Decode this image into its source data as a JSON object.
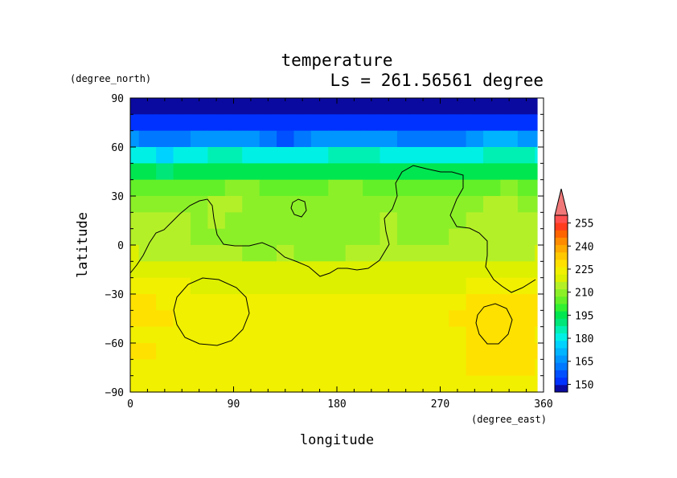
{
  "chart_data": {
    "type": "heatmap",
    "title": "temperature",
    "subtitle": "Ls = 261.56561 degree",
    "xlabel": "longitude",
    "ylabel": "latitude",
    "xunits": "(degree_east)",
    "yunits": "(degree_north)",
    "xlim": [
      0,
      360
    ],
    "ylim": [
      -90,
      90
    ],
    "xticks": [
      "0",
      "90",
      "180",
      "270",
      "360"
    ],
    "yticks": [
      "90",
      "60",
      "30",
      "0",
      "−30",
      "−60",
      "−90"
    ],
    "longitudes": [
      0,
      15,
      30,
      45,
      60,
      75,
      90,
      105,
      120,
      135,
      150,
      165,
      180,
      195,
      210,
      225,
      240,
      255,
      270,
      285,
      300,
      315,
      330,
      345,
      360
    ],
    "latitudes": [
      85,
      75,
      65,
      55,
      45,
      35,
      25,
      15,
      5,
      -5,
      -15,
      -25,
      -35,
      -45,
      -55,
      -65,
      -75,
      -85
    ],
    "values": [
      [
        147,
        147,
        147,
        147,
        147,
        147,
        147,
        147,
        147,
        147,
        147,
        147,
        147,
        147,
        147,
        147,
        147,
        147,
        147,
        147,
        147,
        147,
        147,
        147,
        147
      ],
      [
        153,
        153,
        153,
        153,
        153,
        153,
        153,
        153,
        150,
        150,
        153,
        153,
        153,
        153,
        153,
        153,
        153,
        153,
        153,
        153,
        153,
        153,
        153,
        153,
        153
      ],
      [
        165,
        163,
        160,
        162,
        166,
        167,
        168,
        165,
        160,
        158,
        160,
        166,
        168,
        168,
        169,
        165,
        162,
        160,
        160,
        163,
        166,
        170,
        171,
        168,
        165
      ],
      [
        184,
        181,
        178,
        180,
        184,
        185,
        186,
        184,
        181,
        180,
        181,
        184,
        186,
        186,
        185,
        183,
        181,
        180,
        180,
        181,
        183,
        186,
        188,
        186,
        184
      ],
      [
        196,
        195,
        193,
        195,
        197,
        198,
        199,
        198,
        197,
        196,
        197,
        198,
        199,
        199,
        198,
        197,
        196,
        195,
        195,
        196,
        197,
        198,
        199,
        198,
        196
      ],
      [
        208,
        207,
        205,
        206,
        208,
        209,
        210,
        210,
        209,
        209,
        208,
        209,
        210,
        210,
        209,
        208,
        207,
        207,
        207,
        207,
        208,
        209,
        210,
        209,
        208
      ],
      [
        214,
        214,
        213,
        213,
        214,
        215,
        215,
        214,
        213,
        213,
        212,
        213,
        214,
        214,
        214,
        213,
        213,
        213,
        213,
        214,
        214,
        215,
        215,
        214,
        214
      ],
      [
        216,
        217,
        218,
        216,
        214,
        215,
        213,
        213,
        212,
        214,
        212,
        212,
        212,
        213,
        214,
        215,
        214,
        213,
        212,
        214,
        217,
        216,
        217,
        216,
        216
      ],
      [
        218,
        218,
        217,
        215,
        212,
        214,
        213,
        211,
        210,
        212,
        211,
        210,
        211,
        212,
        213,
        215,
        213,
        212,
        212,
        215,
        217,
        217,
        218,
        217,
        218
      ],
      [
        220,
        219,
        218,
        218,
        216,
        216,
        215,
        214,
        214,
        215,
        214,
        214,
        214,
        215,
        215,
        216,
        216,
        216,
        216,
        217,
        218,
        218,
        219,
        219,
        220
      ],
      [
        222,
        222,
        222,
        222,
        222,
        222,
        222,
        222,
        222,
        222,
        222,
        222,
        222,
        222,
        222,
        222,
        222,
        222,
        222,
        222,
        222,
        222,
        222,
        222,
        222
      ],
      [
        226,
        226,
        225,
        225,
        224,
        224,
        224,
        224,
        224,
        224,
        224,
        224,
        224,
        224,
        224,
        224,
        224,
        224,
        224,
        224,
        225,
        226,
        226,
        226,
        226
      ],
      [
        231,
        230,
        229,
        228,
        228,
        227,
        226,
        226,
        226,
        226,
        226,
        226,
        226,
        226,
        226,
        226,
        226,
        227,
        227,
        228,
        230,
        231,
        232,
        231,
        231
      ],
      [
        232,
        231,
        230,
        229,
        228,
        227,
        226,
        225,
        225,
        225,
        225,
        225,
        225,
        225,
        225,
        225,
        227,
        228,
        229,
        230,
        232,
        233,
        233,
        232,
        232
      ],
      [
        229,
        229,
        228,
        228,
        228,
        228,
        227,
        227,
        227,
        226,
        225,
        225,
        225,
        226,
        227,
        227,
        228,
        228,
        229,
        229,
        231,
        233,
        233,
        231,
        229
      ],
      [
        231,
        230,
        229,
        229,
        229,
        229,
        229,
        229,
        229,
        229,
        229,
        229,
        229,
        229,
        229,
        229,
        229,
        229,
        229,
        229,
        231,
        232,
        232,
        231,
        231
      ],
      [
        229,
        229,
        229,
        229,
        229,
        229,
        229,
        229,
        229,
        229,
        229,
        229,
        229,
        229,
        229,
        229,
        229,
        229,
        229,
        229,
        232,
        232,
        232,
        231,
        229
      ],
      [
        229,
        229,
        229,
        229,
        229,
        229,
        229,
        229,
        229,
        229,
        229,
        229,
        229,
        229,
        229,
        229,
        229,
        229,
        229,
        229,
        229,
        229,
        229,
        229,
        229
      ]
    ],
    "colorbar": {
      "levels": [
        145,
        150,
        155,
        160,
        165,
        170,
        175,
        180,
        185,
        190,
        195,
        200,
        205,
        210,
        215,
        220,
        225,
        230,
        235,
        240,
        245,
        250,
        255,
        260
      ],
      "tick_labels": [
        "150",
        "165",
        "180",
        "195",
        "210",
        "225",
        "240",
        "255"
      ],
      "colors": [
        "#0a0aa0",
        "#0032ff",
        "#0050ff",
        "#0078ff",
        "#0096ff",
        "#00b4ff",
        "#00d2ff",
        "#00f0e6",
        "#00f0b4",
        "#00e678",
        "#00e650",
        "#32f032",
        "#64f028",
        "#8cf028",
        "#b4f028",
        "#dcf000",
        "#f0f000",
        "#ffe100",
        "#ffc800",
        "#ffaa00",
        "#ff8c00",
        "#ff6400",
        "#ff3c1e",
        "#ff5050"
      ],
      "overflow_color": "#f07878"
    }
  }
}
